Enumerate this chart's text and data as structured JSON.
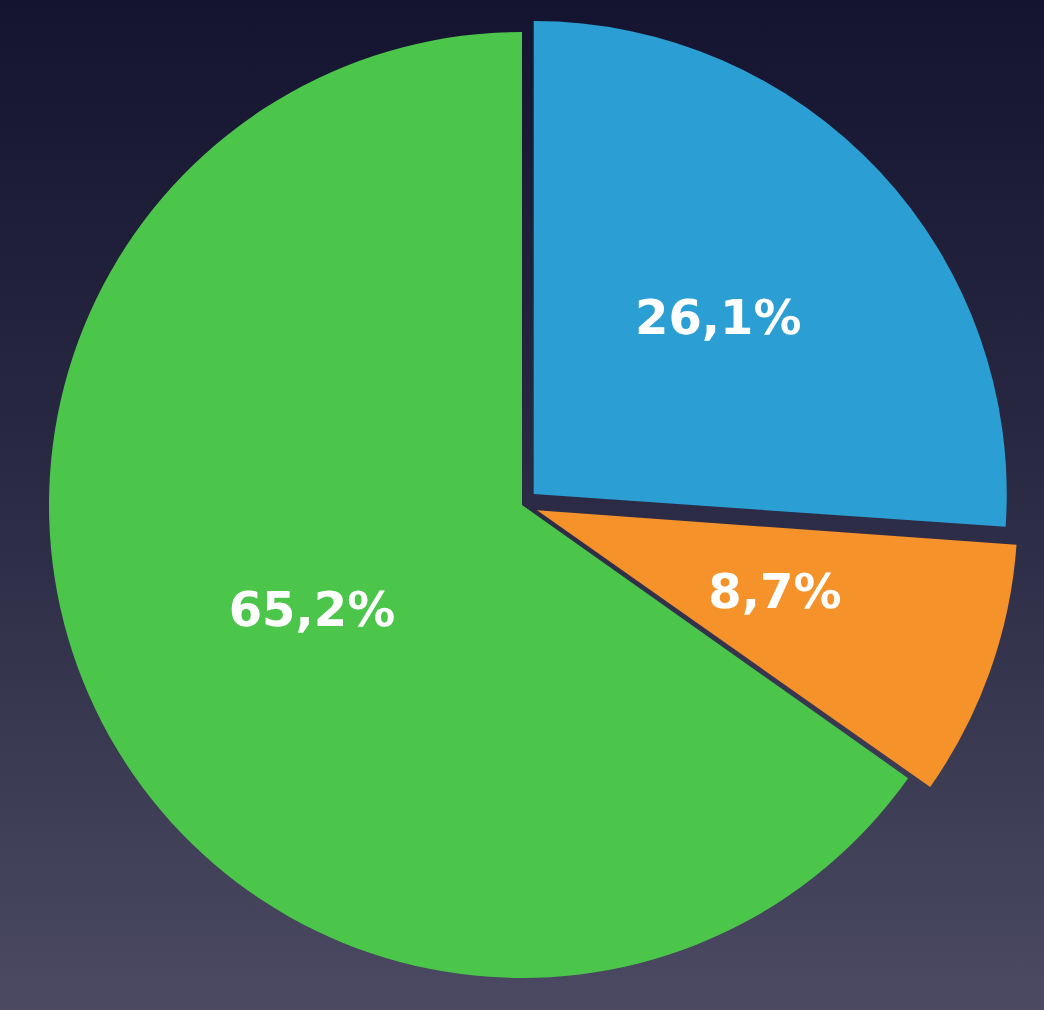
{
  "chart_data": {
    "type": "pie",
    "categories": [
      null,
      null,
      null
    ],
    "values": [
      26.1,
      8.7,
      65.2
    ],
    "colors": [
      "#2b9fd3",
      "#f6922a",
      "#4bc64b"
    ],
    "value_labels": [
      "26,1%",
      "8,7%",
      "65,2%"
    ],
    "legend": false
  }
}
